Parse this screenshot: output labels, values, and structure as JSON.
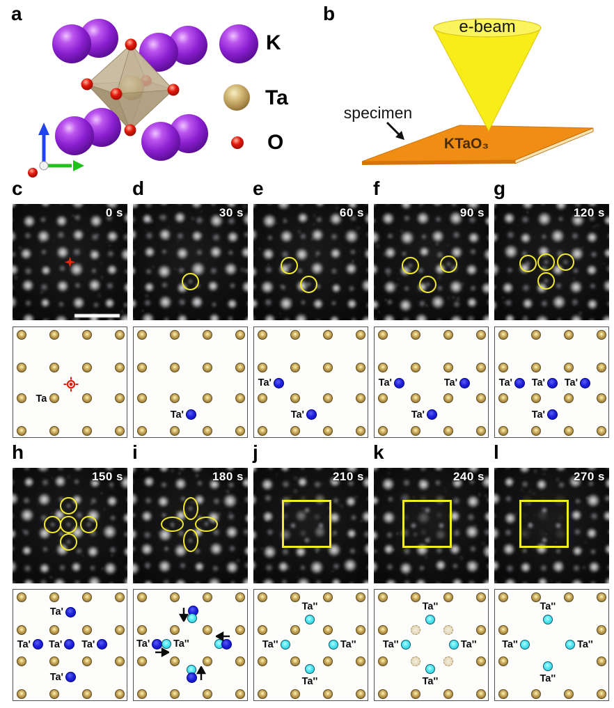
{
  "figure": {
    "panel_a": {
      "letter": "a",
      "legend": [
        {
          "label": "K",
          "color": "#8a1fd0"
        },
        {
          "label": "Ta",
          "color": "#c2a258"
        },
        {
          "label": "O",
          "color": "#e3170b"
        }
      ]
    },
    "panel_b": {
      "letter": "b",
      "beam_label": "e-beam",
      "specimen_label": "specimen",
      "material_label": "KTaO₃",
      "beam_color": "#f7ee18",
      "specimen_color": "#ef8d15"
    },
    "colors": {
      "gold_atom": "#c2a258",
      "ta_prime_blue": "#1b1dd6",
      "ta_doubleprime_cyan": "#55e8f2",
      "overlay_yellow": "#f2ea2a",
      "marker_red": "#e6270f"
    },
    "stem_rows": [
      {
        "panels": [
          {
            "letter": "c",
            "time": "0 s",
            "scalebar": true,
            "overlays": [
              {
                "type": "red-marker",
                "x": 0.5,
                "y": 0.5
              }
            ]
          },
          {
            "letter": "d",
            "time": "30 s",
            "overlays": [
              {
                "type": "circle",
                "x": 0.5,
                "y": 0.665
              }
            ]
          },
          {
            "letter": "e",
            "time": "60 s",
            "overlays": [
              {
                "type": "circle",
                "x": 0.31,
                "y": 0.53
              },
              {
                "type": "circle",
                "x": 0.48,
                "y": 0.69
              }
            ]
          },
          {
            "letter": "f",
            "time": "90 s",
            "overlays": [
              {
                "type": "circle",
                "x": 0.32,
                "y": 0.53
              },
              {
                "type": "circle",
                "x": 0.65,
                "y": 0.515
              },
              {
                "type": "circle",
                "x": 0.47,
                "y": 0.69
              }
            ]
          },
          {
            "letter": "g",
            "time": "120 s",
            "overlays": [
              {
                "type": "circle",
                "x": 0.295,
                "y": 0.51
              },
              {
                "type": "circle",
                "x": 0.45,
                "y": 0.5
              },
              {
                "type": "circle",
                "x": 0.62,
                "y": 0.5
              },
              {
                "type": "circle",
                "x": 0.45,
                "y": 0.66
              }
            ]
          }
        ]
      },
      {
        "panels": [
          {
            "letter": "h",
            "time": "150 s",
            "overlays": [
              {
                "type": "circle",
                "x": 0.49,
                "y": 0.33
              },
              {
                "type": "circle",
                "x": 0.35,
                "y": 0.49
              },
              {
                "type": "circle",
                "x": 0.49,
                "y": 0.49
              },
              {
                "type": "circle",
                "x": 0.665,
                "y": 0.49
              },
              {
                "type": "circle",
                "x": 0.49,
                "y": 0.64
              }
            ]
          },
          {
            "letter": "i",
            "time": "180 s",
            "overlays": [
              {
                "type": "ellipse",
                "x": 0.5,
                "y": 0.35,
                "orient": "v"
              },
              {
                "type": "ellipse",
                "x": 0.34,
                "y": 0.49,
                "orient": "h"
              },
              {
                "type": "ellipse",
                "x": 0.64,
                "y": 0.485,
                "orient": "h"
              },
              {
                "type": "ellipse",
                "x": 0.5,
                "y": 0.63,
                "orient": "v"
              }
            ]
          },
          {
            "letter": "j",
            "time": "210 s",
            "fade": 0.5,
            "overlays": [
              {
                "type": "rect",
                "x": 0.25,
                "y": 0.28,
                "w": 0.43,
                "h": 0.41
              }
            ]
          },
          {
            "letter": "k",
            "time": "240 s",
            "fade": 0.35,
            "overlays": [
              {
                "type": "rect",
                "x": 0.25,
                "y": 0.28,
                "w": 0.43,
                "h": 0.41
              }
            ]
          },
          {
            "letter": "l",
            "time": "270 s",
            "fade": 0.15,
            "overlays": [
              {
                "type": "rect",
                "x": 0.22,
                "y": 0.28,
                "w": 0.43,
                "h": 0.41
              }
            ]
          }
        ]
      }
    ],
    "schematic_rows": [
      {
        "panels": [
          {
            "gold": "all",
            "target": {
              "x": 0.505,
              "y": 0.515
            },
            "texts": [
              {
                "text": "Ta",
                "x": 0.245,
                "y": 0.645
              }
            ],
            "atoms": [],
            "arrows": []
          },
          {
            "gold": "all",
            "texts": [],
            "arrows": [],
            "atoms": [
              {
                "type": "blue",
                "x": 0.5,
                "y": 0.785,
                "label": "Ta'",
                "side": "left"
              }
            ]
          },
          {
            "gold": "all",
            "texts": [],
            "arrows": [],
            "atoms": [
              {
                "type": "blue",
                "x": 0.215,
                "y": 0.5,
                "label": "Ta'",
                "side": "left"
              },
              {
                "type": "blue",
                "x": 0.5,
                "y": 0.785,
                "label": "Ta'",
                "side": "left"
              }
            ]
          },
          {
            "gold": "all",
            "texts": [],
            "arrows": [],
            "atoms": [
              {
                "type": "blue",
                "x": 0.215,
                "y": 0.5,
                "label": "Ta'",
                "side": "left"
              },
              {
                "type": "blue",
                "x": 0.785,
                "y": 0.5,
                "label": "Ta'",
                "side": "left"
              },
              {
                "type": "blue",
                "x": 0.5,
                "y": 0.785,
                "label": "Ta'",
                "side": "left"
              }
            ]
          },
          {
            "gold": "all",
            "texts": [],
            "arrows": [],
            "atoms": [
              {
                "type": "blue",
                "x": 0.215,
                "y": 0.5,
                "label": "Ta'",
                "side": "left"
              },
              {
                "type": "blue",
                "x": 0.5,
                "y": 0.5,
                "label": "Ta'",
                "side": "left"
              },
              {
                "type": "blue",
                "x": 0.785,
                "y": 0.5,
                "label": "Ta'",
                "side": "left"
              },
              {
                "type": "blue",
                "x": 0.5,
                "y": 0.785,
                "label": "Ta'",
                "side": "left"
              }
            ]
          }
        ]
      },
      {
        "panels": [
          {
            "gold": "all",
            "texts": [],
            "arrows": [],
            "atoms": [
              {
                "type": "blue",
                "x": 0.5,
                "y": 0.2,
                "label": "Ta'",
                "side": "left"
              },
              {
                "type": "blue",
                "x": 0.215,
                "y": 0.49,
                "label": "Ta'",
                "side": "left"
              },
              {
                "type": "blue",
                "x": 0.49,
                "y": 0.49,
                "label": "Ta'",
                "side": "left"
              },
              {
                "type": "blue",
                "x": 0.775,
                "y": 0.49,
                "label": "Ta'",
                "side": "left"
              },
              {
                "type": "blue",
                "x": 0.5,
                "y": 0.78,
                "label": "Ta'",
                "side": "left"
              }
            ]
          },
          {
            "gold": "all",
            "texts": [],
            "atoms": [
              {
                "type": "blue",
                "x": 0.52,
                "y": 0.19
              },
              {
                "type": "cyan",
                "x": 0.51,
                "y": 0.255
              },
              {
                "type": "blue",
                "x": 0.205,
                "y": 0.487,
                "label": "Ta'",
                "side": "left"
              },
              {
                "type": "cyan",
                "x": 0.285,
                "y": 0.487,
                "label": "Ta''",
                "side": "right"
              },
              {
                "type": "cyan",
                "x": 0.745,
                "y": 0.487
              },
              {
                "type": "blue",
                "x": 0.81,
                "y": 0.487
              },
              {
                "type": "cyan",
                "x": 0.506,
                "y": 0.715
              },
              {
                "type": "blue",
                "x": 0.506,
                "y": 0.786
              }
            ],
            "arrows": [
              {
                "dir": "down",
                "x": 0.435,
                "y": 0.215
              },
              {
                "dir": "right",
                "x": 0.245,
                "y": 0.558
              },
              {
                "dir": "left",
                "x": 0.78,
                "y": 0.415
              },
              {
                "dir": "up",
                "x": 0.585,
                "y": 0.75
              }
            ]
          },
          {
            "gold": "all",
            "texts": [],
            "arrows": [],
            "atoms": [
              {
                "type": "cyan",
                "x": 0.485,
                "y": 0.265,
                "label": "Ta''",
                "side": "above"
              },
              {
                "type": "cyan",
                "x": 0.27,
                "y": 0.49,
                "label": "Ta''",
                "side": "left"
              },
              {
                "type": "cyan",
                "x": 0.69,
                "y": 0.49,
                "label": "Ta''",
                "side": "right"
              },
              {
                "type": "cyan",
                "x": 0.485,
                "y": 0.705,
                "label": "Ta''",
                "side": "below"
              }
            ]
          },
          {
            "gold": "ghost-inner",
            "texts": [],
            "arrows": [],
            "atoms": [
              {
                "type": "cyan",
                "x": 0.485,
                "y": 0.265,
                "label": "Ta''",
                "side": "above"
              },
              {
                "type": "cyan",
                "x": 0.27,
                "y": 0.49,
                "label": "Ta''",
                "side": "left"
              },
              {
                "type": "cyan",
                "x": 0.69,
                "y": 0.49,
                "label": "Ta''",
                "side": "right"
              },
              {
                "type": "cyan",
                "x": 0.485,
                "y": 0.705,
                "label": "Ta''",
                "side": "below"
              }
            ]
          },
          {
            "gold": "missing-inner",
            "texts": [],
            "arrows": [],
            "atoms": [
              {
                "type": "cyan",
                "x": 0.46,
                "y": 0.27,
                "label": "Ta''",
                "side": "above"
              },
              {
                "type": "cyan",
                "x": 0.26,
                "y": 0.49,
                "label": "Ta''",
                "side": "left"
              },
              {
                "type": "cyan",
                "x": 0.655,
                "y": 0.49,
                "label": "Ta''",
                "side": "right"
              },
              {
                "type": "cyan",
                "x": 0.46,
                "y": 0.685,
                "label": "Ta''",
                "side": "below"
              }
            ]
          }
        ]
      }
    ]
  }
}
